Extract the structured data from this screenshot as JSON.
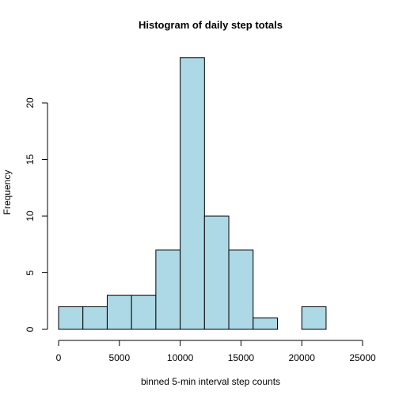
{
  "chart_data": {
    "type": "bar",
    "title": "Histogram of daily step totals",
    "xlabel": "binned 5-min interval step counts",
    "ylabel": "Frequency",
    "bins": [
      {
        "start": 0,
        "end": 2000,
        "count": 2
      },
      {
        "start": 2000,
        "end": 4000,
        "count": 2
      },
      {
        "start": 4000,
        "end": 6000,
        "count": 3
      },
      {
        "start": 6000,
        "end": 8000,
        "count": 3
      },
      {
        "start": 8000,
        "end": 10000,
        "count": 7
      },
      {
        "start": 10000,
        "end": 12000,
        "count": 24
      },
      {
        "start": 12000,
        "end": 14000,
        "count": 10
      },
      {
        "start": 14000,
        "end": 16000,
        "count": 7
      },
      {
        "start": 16000,
        "end": 18000,
        "count": 1
      },
      {
        "start": 18000,
        "end": 20000,
        "count": 0
      },
      {
        "start": 20000,
        "end": 22000,
        "count": 2
      }
    ],
    "x_ticks": [
      0,
      5000,
      10000,
      15000,
      20000,
      25000
    ],
    "y_ticks": [
      0,
      5,
      10,
      15,
      20
    ],
    "xlim": [
      0,
      25000
    ],
    "ylim": [
      0,
      24
    ],
    "grid": false,
    "legend": "none",
    "colors": {
      "bar_fill": "#add8e6",
      "bar_stroke": "#000000",
      "axis": "#000000",
      "background": "#ffffff"
    }
  }
}
